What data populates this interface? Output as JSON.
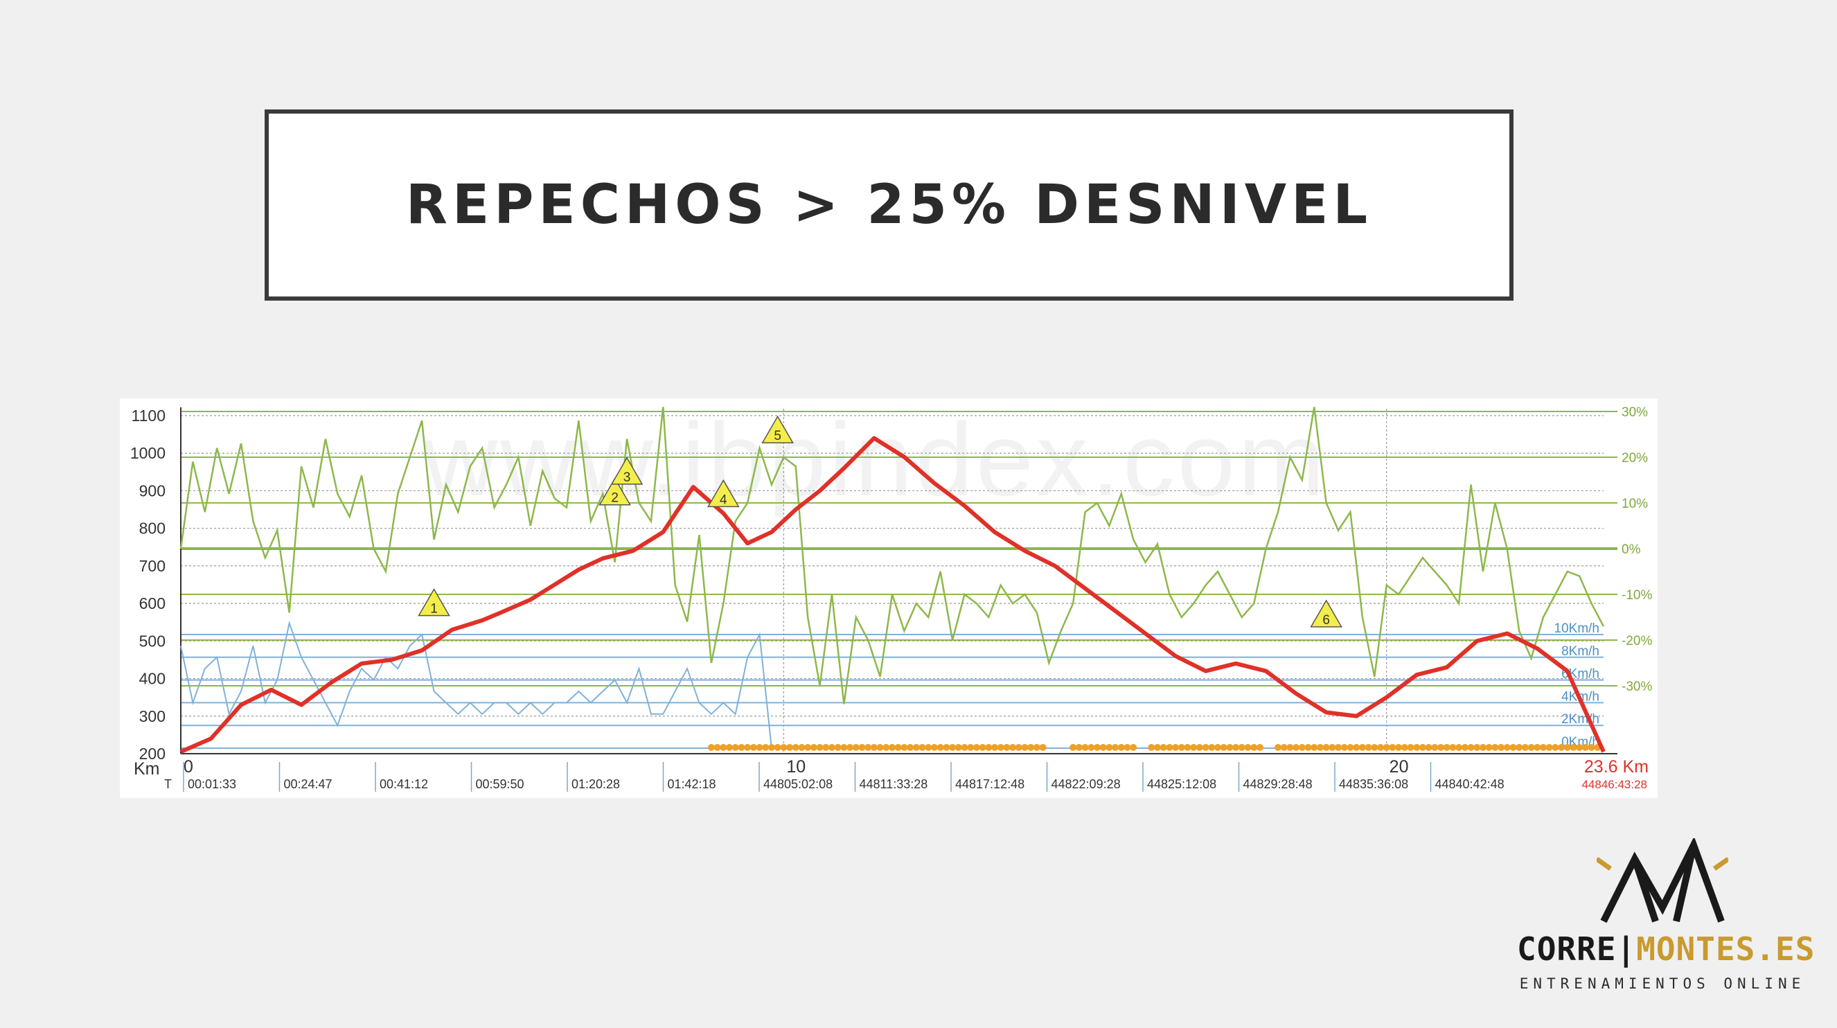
{
  "slide": {
    "title": "REPECHOS > 25% DESNIVEL"
  },
  "logo": {
    "name_part1": "CORRE",
    "separator": "|",
    "name_part2": "MONTES.ES",
    "subtitle": "ENTRENAMIENTOS ONLINE",
    "icon": "mountain-peaks-icon",
    "colors": {
      "dark": "#1a1a1a",
      "gold": "#c99a2e"
    }
  },
  "chart_data": {
    "type": "line",
    "watermark": "www.ibpindex.com",
    "x_axis": {
      "label": "Km",
      "range": [
        0,
        23.6
      ],
      "ticks": [
        0,
        10,
        20
      ],
      "end_label": "23.6 Km",
      "time_label": "T",
      "time_ticks": [
        "00:01:33",
        "00:24:47",
        "00:41:12",
        "00:59:50",
        "01:20:28",
        "01:42:18",
        "44805:02:08",
        "44811:33:28",
        "44817:12:48",
        "44822:09:28",
        "44825:12:08",
        "44829:28:48",
        "44835:36:08",
        "44840:42:48"
      ],
      "end_time_label": "44846:43:28"
    },
    "y_axis_left": {
      "unit": "m",
      "range": [
        200,
        1100
      ],
      "ticks": [
        200,
        300,
        400,
        500,
        600,
        700,
        800,
        900,
        1000,
        1100
      ]
    },
    "y_axis_right_slope": {
      "unit": "%",
      "range": [
        -30,
        30
      ],
      "ticks": [
        "30%",
        "20%",
        "10%",
        "0%",
        "-10%",
        "-20%",
        "-30%"
      ],
      "values": [
        30,
        20,
        10,
        0,
        -10,
        -20,
        -30
      ]
    },
    "speed_axis": {
      "ticks": [
        "10Km/h",
        "8Km/h",
        "6Km/h",
        "4Km/h",
        "2Km/h",
        "0Km/h"
      ],
      "values": [
        10,
        8,
        6,
        4,
        2,
        0
      ]
    },
    "colors": {
      "elevation": "#e03128",
      "slope": "#8db84a",
      "speed": "#7fb1d9",
      "stops": "#eea028",
      "marker_fill": "#f4ee4a",
      "end_label": "#e03128",
      "axis_text": "#333333",
      "slope_axis_text": "#7fa83a",
      "speed_axis_text": "#4f8fc4"
    },
    "series": [
      {
        "name": "elevation",
        "x": [
          0,
          0.5,
          1.0,
          1.5,
          2.0,
          2.5,
          3.0,
          3.5,
          4.0,
          4.5,
          5.0,
          5.3,
          5.8,
          6.2,
          6.6,
          7.0,
          7.5,
          8.0,
          8.5,
          9.0,
          9.4,
          9.8,
          10.2,
          10.6,
          11.0,
          11.5,
          12.0,
          12.5,
          13.0,
          13.5,
          14.0,
          14.5,
          15.0,
          15.5,
          16.0,
          16.5,
          17.0,
          17.5,
          18.0,
          18.5,
          19.0,
          19.5,
          20.0,
          20.5,
          21.0,
          21.5,
          22.0,
          22.5,
          23.0,
          23.6
        ],
        "y": [
          205,
          240,
          330,
          370,
          330,
          390,
          440,
          450,
          475,
          530,
          555,
          575,
          610,
          650,
          690,
          720,
          740,
          790,
          910,
          840,
          760,
          790,
          850,
          900,
          960,
          1040,
          990,
          920,
          860,
          790,
          740,
          700,
          640,
          580,
          520,
          460,
          420,
          440,
          420,
          360,
          310,
          300,
          350,
          410,
          430,
          500,
          520,
          480,
          420,
          205
        ]
      },
      {
        "name": "slope",
        "x": [
          0,
          0.2,
          0.4,
          0.6,
          0.8,
          1.0,
          1.2,
          1.4,
          1.6,
          1.8,
          2.0,
          2.2,
          2.4,
          2.6,
          2.8,
          3.0,
          3.2,
          3.4,
          3.6,
          3.8,
          4.0,
          4.2,
          4.4,
          4.6,
          4.8,
          5.0,
          5.2,
          5.4,
          5.6,
          5.8,
          6.0,
          6.2,
          6.4,
          6.6,
          6.8,
          7.0,
          7.2,
          7.4,
          7.6,
          7.8,
          8.0,
          8.2,
          8.4,
          8.6,
          8.8,
          9.0,
          9.2,
          9.4,
          9.6,
          9.8,
          10.0,
          10.2,
          10.4,
          10.6,
          10.8,
          11.0,
          11.2,
          11.4,
          11.6,
          11.8,
          12.0,
          12.2,
          12.4,
          12.6,
          12.8,
          13.0,
          13.2,
          13.4,
          13.6,
          13.8,
          14.0,
          14.2,
          14.4,
          14.6,
          14.8,
          15.0,
          15.2,
          15.4,
          15.6,
          15.8,
          16.0,
          16.2,
          16.4,
          16.6,
          16.8,
          17.0,
          17.2,
          17.4,
          17.6,
          17.8,
          18.0,
          18.2,
          18.4,
          18.6,
          18.8,
          19.0,
          19.2,
          19.4,
          19.6,
          19.8,
          20.0,
          20.2,
          20.4,
          20.6,
          20.8,
          21.0,
          21.2,
          21.4,
          21.6,
          21.8,
          22.0,
          22.2,
          22.4,
          22.6,
          22.8,
          23.0,
          23.2,
          23.4,
          23.6
        ],
        "y": [
          0,
          19,
          8,
          22,
          12,
          23,
          6,
          -2,
          4,
          -14,
          18,
          9,
          24,
          12,
          7,
          16,
          0,
          -5,
          12,
          20,
          28,
          2,
          14,
          8,
          18,
          22,
          9,
          14,
          20,
          5,
          17,
          11,
          9,
          28,
          6,
          12,
          -3,
          24,
          10,
          6,
          31,
          -8,
          -16,
          3,
          -25,
          -12,
          6,
          10,
          22,
          14,
          20,
          18,
          -15,
          -30,
          -10,
          -34,
          -15,
          -20,
          -28,
          -10,
          -18,
          -12,
          -15,
          -5,
          -20,
          -10,
          -12,
          -15,
          -8,
          -12,
          -10,
          -14,
          -25,
          -18,
          -12,
          8,
          10,
          5,
          12,
          2,
          -3,
          1,
          -10,
          -15,
          -12,
          -8,
          -5,
          -10,
          -15,
          -12,
          0,
          8,
          20,
          15,
          31,
          10,
          4,
          8,
          -15,
          -28,
          -8,
          -10,
          -6,
          -2,
          -5,
          -8,
          -12,
          14,
          -5,
          10,
          0,
          -18,
          -24,
          -15,
          -10,
          -5,
          -6,
          -12,
          -17
        ]
      },
      {
        "name": "speed",
        "x": [
          0,
          0.2,
          0.4,
          0.6,
          0.8,
          1.0,
          1.2,
          1.4,
          1.6,
          1.8,
          2.0,
          2.2,
          2.4,
          2.6,
          2.8,
          3.0,
          3.2,
          3.4,
          3.6,
          3.8,
          4.0,
          4.2,
          4.4,
          4.6,
          4.8,
          5.0,
          5.2,
          5.4,
          5.6,
          5.8,
          6.0,
          6.2,
          6.4,
          6.6,
          6.8,
          7.0,
          7.2,
          7.4,
          7.6,
          7.8,
          8.0,
          8.2,
          8.4,
          8.6,
          8.8,
          9.0,
          9.2,
          9.4,
          9.6,
          9.8
        ],
        "y": [
          9,
          4,
          7,
          8,
          3,
          5,
          9,
          4,
          6,
          11,
          8,
          6,
          4,
          2,
          5,
          7,
          6,
          8,
          7,
          9,
          10,
          5,
          4,
          3,
          4,
          3,
          4,
          4,
          3,
          4,
          3,
          4,
          4,
          5,
          4,
          5,
          6,
          4,
          7,
          3,
          3,
          5,
          7,
          4,
          3,
          4,
          3,
          8,
          10,
          0
        ]
      }
    ],
    "stops": {
      "ranges": [
        [
          8.8,
          14.3
        ],
        [
          14.8,
          15.8
        ],
        [
          16.1,
          18.0
        ],
        [
          18.2,
          23.6
        ]
      ]
    },
    "markers": [
      {
        "label": "1",
        "x": 4.2,
        "y": 575
      },
      {
        "label": "2",
        "x": 7.2,
        "y": 870
      },
      {
        "label": "3",
        "x": 7.4,
        "y": 925
      },
      {
        "label": "4",
        "x": 9.0,
        "y": 865
      },
      {
        "label": "5",
        "x": 9.9,
        "y": 1035
      },
      {
        "label": "6",
        "x": 19.0,
        "y": 545
      }
    ]
  }
}
